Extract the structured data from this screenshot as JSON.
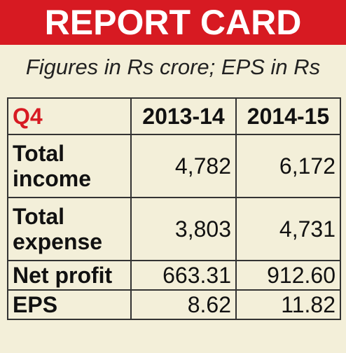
{
  "title": "REPORT CARD",
  "subtitle": "Figures in Rs crore; EPS in Rs",
  "colors": {
    "banner": "#d71a22",
    "background": "#f3efd9",
    "accent_text": "#d71a22"
  },
  "table": {
    "headers": [
      "Q4",
      "2013-14",
      "2014-15"
    ],
    "rows": [
      {
        "label_line1": "Total",
        "label_line2": "income",
        "v1": "4,782",
        "v2": "6,172"
      },
      {
        "label_line1": "Total",
        "label_line2": "expense",
        "v1": "3,803",
        "v2": "4,731"
      },
      {
        "label": "Net profit",
        "v1": "663.31",
        "v2": "912.60"
      },
      {
        "label": "EPS",
        "v1": "8.62",
        "v2": "11.82"
      }
    ]
  }
}
